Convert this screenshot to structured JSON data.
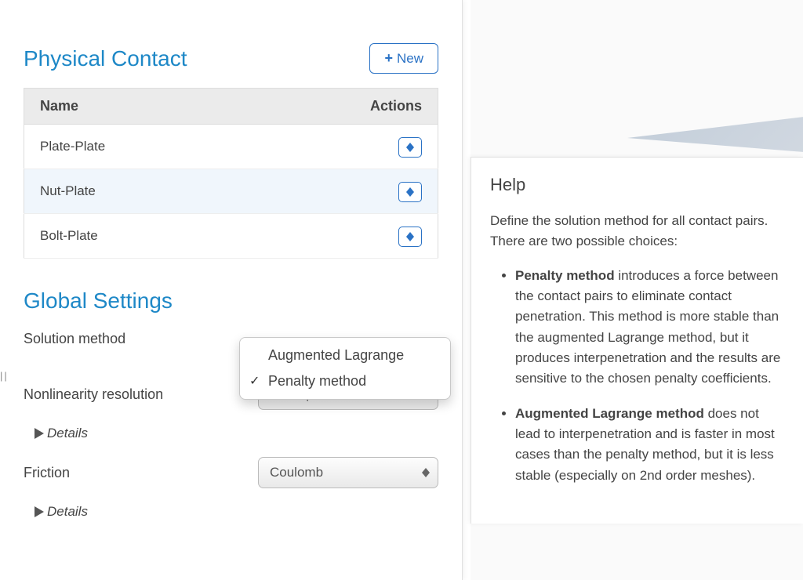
{
  "physical_contact": {
    "title": "Physical Contact",
    "new_button": "New",
    "columns": {
      "name": "Name",
      "actions": "Actions"
    },
    "rows": [
      {
        "name": "Plate-Plate",
        "highlight": false
      },
      {
        "name": "Nut-Plate",
        "highlight": true
      },
      {
        "name": "Bolt-Plate",
        "highlight": false
      }
    ]
  },
  "global_settings": {
    "title": "Global Settings",
    "solution_method": {
      "label": "Solution method",
      "options": [
        "Augmented Lagrange",
        "Penalty method"
      ],
      "selected": "Penalty method"
    },
    "nonlinearity": {
      "label": "Nonlinearity resolution",
      "value": "Fixed point"
    },
    "details_label": "Details",
    "friction": {
      "label": "Friction",
      "value": "Coulomb"
    }
  },
  "help": {
    "title": "Help",
    "intro": "Define the solution method for all contact pairs. There are two possible choices:",
    "items": [
      {
        "term": "Penalty method",
        "body": " introduces a force between the contact pairs to eliminate contact penetration. This method is more stable than the augmented Lagrange method, but it produces interpenetration and the results are sensitive to the chosen penalty coefficients."
      },
      {
        "term": "Augmented Lagrange method",
        "body": " does not lead to interpenetration and is faster in most cases than the penalty method, but it is less stable (especially on 2nd order meshes)."
      }
    ]
  },
  "colors": {
    "accent": "#1e88c7",
    "button_border": "#2a72c5"
  }
}
